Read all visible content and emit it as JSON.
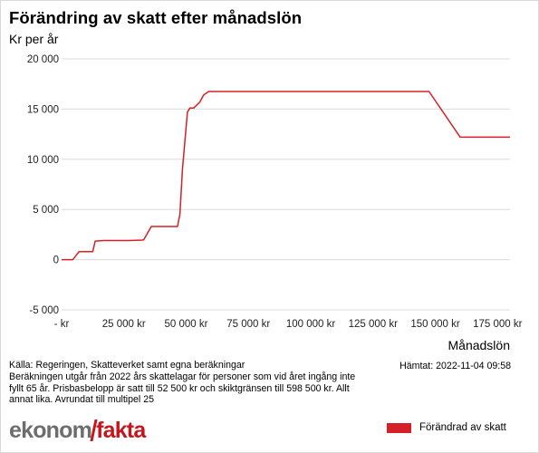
{
  "header": {
    "title": "Förändring av skatt efter månadslön",
    "ylabel": "Kr per år",
    "xlabel": "Månadslön"
  },
  "footer": {
    "source": "Källa: Regeringen, Skatteverket samt egna beräkningar",
    "note": "Beräkningen utgår från 2022 års skattelagar för personer som vid året ingång inte fyllt 65 år. Prisbasbelopp är satt till 52 500 kr och skiktgränsen till 598 500 kr. Allt annat lika. Avrundat till multipel 25",
    "fetched": "Hämtat: 2022-11-04 09:58",
    "logo_part1": "ekonom",
    "logo_part2": "fakta"
  },
  "colors": {
    "series": "#d42027",
    "grid": "#dcdcdc",
    "logo_red": "#c4161c",
    "logo_gray": "#6d6d6d"
  },
  "chart_data": {
    "type": "line",
    "title": "Förändring av skatt efter månadslön",
    "xlabel": "Månadslön",
    "ylabel": "Kr per år",
    "xlim": [
      0,
      180000
    ],
    "ylim": [
      -5000,
      20000
    ],
    "x_ticks": [
      0,
      25000,
      50000,
      75000,
      100000,
      125000,
      150000,
      175000
    ],
    "x_tick_labels": [
      "-   kr",
      "25 000 kr",
      "50 000 kr",
      "75 000 kr",
      "100 000 kr",
      "125 000 kr",
      "150 000 kr",
      "175 000 kr"
    ],
    "y_ticks": [
      -5000,
      0,
      5000,
      10000,
      15000,
      20000
    ],
    "y_tick_labels": [
      "-5 000",
      "0",
      "5 000",
      "10 000",
      "15 000",
      "20 000"
    ],
    "grid": true,
    "legend_position": "bottom-right",
    "series": [
      {
        "name": "Förändrad av skatt",
        "x": [
          0,
          4500,
          7000,
          12500,
          13500,
          17000,
          23000,
          27000,
          32500,
          33000,
          36000,
          41000,
          46500,
          47500,
          48500,
          50500,
          51500,
          53000,
          55500,
          57000,
          59000,
          66000,
          100000,
          130000,
          147500,
          160000,
          180000
        ],
        "y": [
          0,
          0,
          800,
          800,
          1850,
          1900,
          1900,
          1900,
          1950,
          2000,
          3300,
          3300,
          3300,
          4500,
          9000,
          14700,
          15100,
          15100,
          15700,
          16400,
          16750,
          16750,
          16750,
          16750,
          16750,
          12200,
          12200
        ]
      }
    ]
  }
}
